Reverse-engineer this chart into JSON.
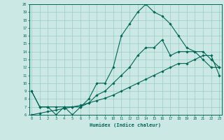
{
  "xlabel": "Humidex (Indice chaleur)",
  "ylabel": "",
  "bg_color": "#cce8e4",
  "grid_color": "#99ccc6",
  "line_color": "#006655",
  "xmin": 0,
  "xmax": 23,
  "ymin": 6,
  "ymax": 20,
  "hours": [
    0,
    1,
    2,
    3,
    4,
    5,
    6,
    7,
    8,
    9,
    10,
    11,
    12,
    13,
    14,
    15,
    16,
    17,
    18,
    19,
    20,
    21,
    22,
    23
  ],
  "line_peak": [
    9,
    7,
    7,
    6,
    7,
    6,
    7,
    8,
    10,
    10,
    12,
    16,
    17.5,
    19,
    20,
    19,
    18.5,
    17.5,
    16,
    14.5,
    14,
    13,
    12,
    12
  ],
  "line_diag": [
    6,
    6.2,
    6.4,
    6.6,
    6.8,
    7.0,
    7.2,
    7.5,
    7.8,
    8.1,
    8.5,
    9.0,
    9.5,
    10.0,
    10.5,
    11.0,
    11.5,
    12.0,
    12.5,
    12.5,
    13.0,
    13.5,
    13.5,
    11.0
  ],
  "line_mid": [
    9,
    7,
    7,
    7,
    7,
    7,
    7,
    7.5,
    8.5,
    9.0,
    10.0,
    11.0,
    12.0,
    13.5,
    14.5,
    14.5,
    15.5,
    13.5,
    14.0,
    14.0,
    14.0,
    14.0,
    13.0,
    12.0
  ]
}
